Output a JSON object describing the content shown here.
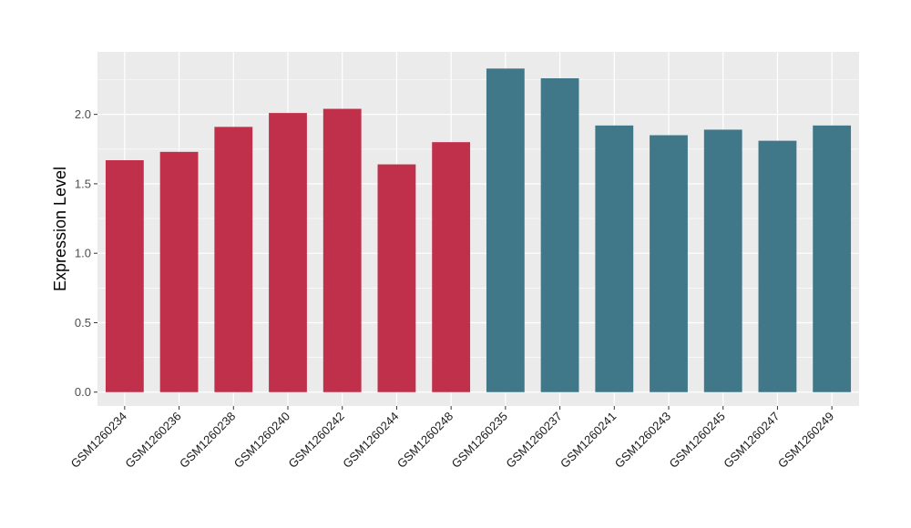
{
  "chart_data": {
    "type": "bar",
    "title": "",
    "xlabel": "",
    "ylabel": "Expression Level",
    "ylim": [
      -0.1,
      2.45
    ],
    "y_ticks": [
      0.0,
      0.5,
      1.0,
      1.5,
      2.0
    ],
    "y_tick_labels": [
      "0.0",
      "0.5",
      "1.0",
      "1.5",
      "2.0"
    ],
    "grid": true,
    "background": "#ebebeb",
    "categories": [
      "GSM1260234",
      "GSM1260236",
      "GSM1260238",
      "GSM1260240",
      "GSM1260242",
      "GSM1260244",
      "GSM1260248",
      "GSM1260235",
      "GSM1260237",
      "GSM1260241",
      "GSM1260243",
      "GSM1260245",
      "GSM1260247",
      "GSM1260249"
    ],
    "values": [
      1.67,
      1.73,
      1.91,
      2.01,
      2.04,
      1.64,
      1.8,
      2.33,
      2.26,
      1.92,
      1.85,
      1.89,
      1.81,
      1.92
    ],
    "groups": [
      {
        "color": "#c0304a",
        "indices": [
          0,
          1,
          2,
          3,
          4,
          5,
          6
        ]
      },
      {
        "color": "#417889",
        "indices": [
          7,
          8,
          9,
          10,
          11,
          12,
          13
        ]
      }
    ]
  }
}
